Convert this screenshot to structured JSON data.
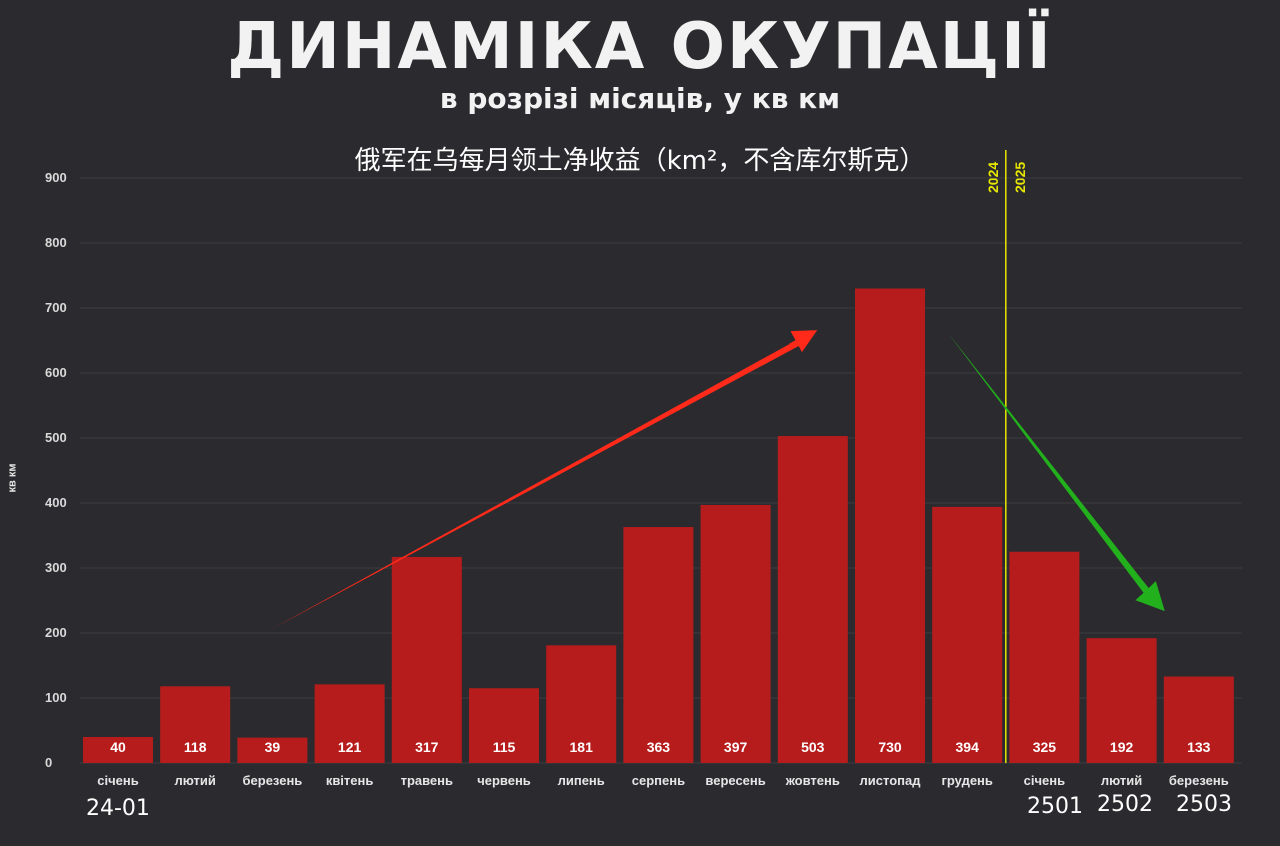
{
  "title": "ДИНАМІКА ОКУПАЦІЇ",
  "subtitle": "в розрізі місяців, у кв км",
  "overlay_title": "俄军在乌每月领土净收益（km²，不含库尔斯克）",
  "year_labels": [
    "2024",
    "2025"
  ],
  "bottom_annotations": [
    "24-01",
    "2501",
    "2502",
    "2503"
  ],
  "chart_data": {
    "type": "bar",
    "ylabel": "кв км",
    "ylim": [
      0,
      900
    ],
    "yticks": [
      0,
      100,
      200,
      300,
      400,
      500,
      600,
      700,
      800,
      900
    ],
    "categories": [
      "січень",
      "лютий",
      "березень",
      "квітень",
      "травень",
      "червень",
      "липень",
      "серпень",
      "вересень",
      "жовтень",
      "листопад",
      "грудень",
      "січень",
      "лютий",
      "березень"
    ],
    "values": [
      40,
      118,
      39,
      121,
      317,
      115,
      181,
      363,
      397,
      503,
      730,
      394,
      325,
      192,
      133
    ],
    "year_divider_between": [
      11,
      12
    ],
    "grid": true,
    "colors": {
      "bar": "#b71c1c",
      "grid": "#3d3d42",
      "divider": "#e6e600",
      "up_arrow": "#ff2a1a",
      "down_arrow": "#22b01c"
    }
  }
}
